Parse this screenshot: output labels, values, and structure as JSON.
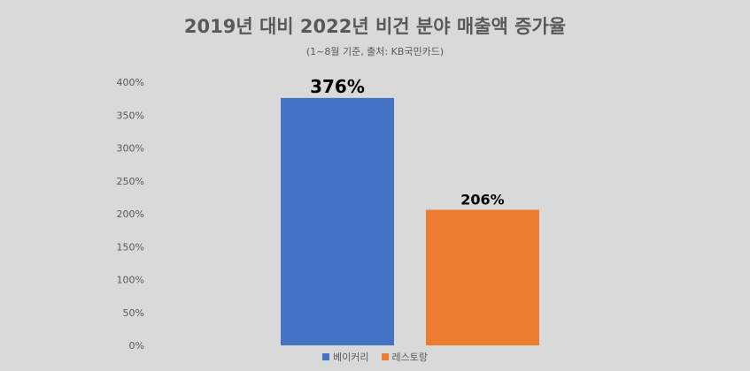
{
  "chart_data": {
    "type": "bar",
    "title": "2019년 대비 2022년 비건 분야 매출액 증가율",
    "subtitle": "(1~8월 기준, 출처: KB국민카드)",
    "categories": [
      "베이커리",
      "레스토랑"
    ],
    "values": [
      376,
      206
    ],
    "value_labels": [
      "376%",
      "206%"
    ],
    "colors": [
      "#4472c4",
      "#ed7d31"
    ],
    "ylim": [
      0,
      400
    ],
    "yticks": [
      "0%",
      "50%",
      "100%",
      "150%",
      "200%",
      "250%",
      "300%",
      "350%",
      "400%"
    ],
    "grid": false,
    "legend_position": "bottom",
    "legend": [
      {
        "name": "베이커리",
        "color": "#4472c4"
      },
      {
        "name": "레스토랑",
        "color": "#ed7d31"
      }
    ]
  }
}
